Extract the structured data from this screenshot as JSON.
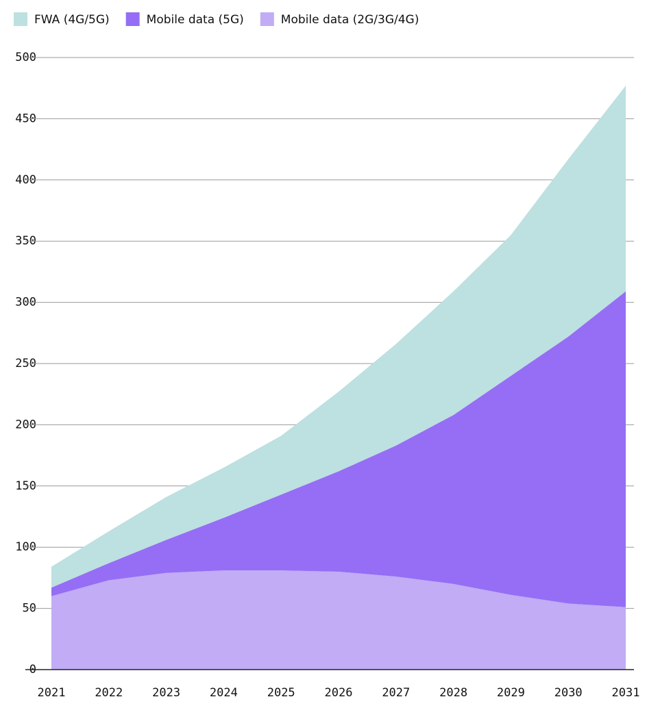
{
  "chart_data": {
    "type": "stacked-area",
    "categories": [
      "2021",
      "2022",
      "2023",
      "2024",
      "2025",
      "2026",
      "2027",
      "2028",
      "2029",
      "2030",
      "2031"
    ],
    "series": [
      {
        "name": "FWA (4G/5G)",
        "color": "#bde0e0",
        "values": [
          17,
          26,
          35,
          41,
          48,
          65,
          83,
          101,
          115,
          145,
          168
        ]
      },
      {
        "name": "Mobile data (5G)",
        "color": "#956ef5",
        "values": [
          7,
          14,
          27,
          43,
          62,
          82,
          107,
          138,
          179,
          218,
          258
        ]
      },
      {
        "name": "Mobile data (2G/3G/4G)",
        "color": "#c1acf5",
        "values": [
          60,
          73,
          79,
          81,
          81,
          80,
          76,
          70,
          61,
          54,
          51
        ]
      }
    ],
    "ylim": [
      0,
      500
    ],
    "yticks": [
      0,
      50,
      100,
      150,
      200,
      250,
      300,
      350,
      400,
      450,
      500
    ],
    "grid": true
  }
}
